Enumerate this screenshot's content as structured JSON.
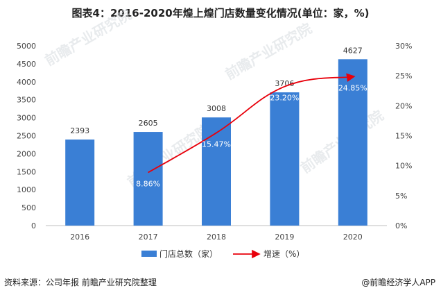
{
  "title": "图表4：2016-2020年煌上煌门店数量变化情况(单位：家，%)",
  "footer": {
    "source": "资料来源：公司年报 前瞻产业研究院整理",
    "brand": "@前瞻经济学人APP"
  },
  "watermark": "前瞻产业研究院",
  "chart_data": {
    "type": "bar",
    "categories": [
      "2016",
      "2017",
      "2018",
      "2019",
      "2020"
    ],
    "series": [
      {
        "name": "门店总数（家）",
        "type": "bar",
        "axis": "left",
        "color": "#3a7fd5",
        "values": [
          2393,
          2605,
          3008,
          3706,
          4627
        ],
        "labels": [
          "2393",
          "2605",
          "3008",
          "3706",
          "4627"
        ]
      },
      {
        "name": "增速（%）",
        "type": "line",
        "axis": "right",
        "color": "#e8000b",
        "values": [
          null,
          8.86,
          15.47,
          23.2,
          24.85
        ],
        "labels": [
          "",
          "8.86%",
          "15.47%",
          "23.20%",
          "24.85%"
        ]
      }
    ],
    "y_left": {
      "min": 0,
      "max": 5000,
      "ticks": [
        "0",
        "500",
        "1000",
        "1500",
        "2000",
        "2500",
        "3000",
        "3500",
        "4000",
        "4500",
        "5000"
      ]
    },
    "y_right": {
      "min": 0,
      "max": 30,
      "ticks": [
        "0%",
        "5%",
        "10%",
        "15%",
        "20%",
        "25%",
        "30%"
      ]
    },
    "grid": false,
    "legend_position": "bottom"
  }
}
